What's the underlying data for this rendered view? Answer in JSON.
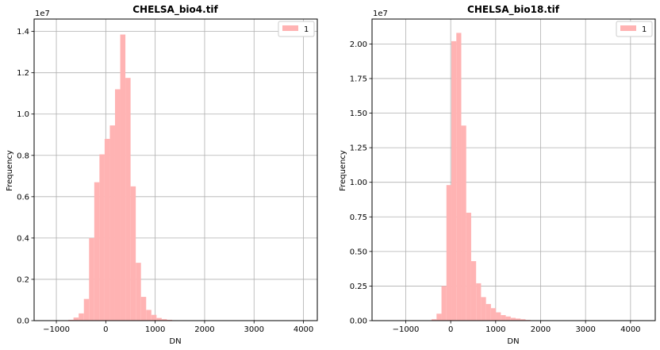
{
  "chart_data": [
    {
      "type": "bar",
      "title": "CHELSA_bio4.tif",
      "xlabel": "DN",
      "ylabel": "Frequency",
      "y_offset_label": "1e7",
      "xlim": [
        -1450,
        4280
      ],
      "ylim": [
        0,
        14.6
      ],
      "xticks": [
        -1000,
        0,
        1000,
        2000,
        3000,
        4000
      ],
      "xtick_labels": [
        "−1000",
        "0",
        "1000",
        "2000",
        "3000",
        "4000"
      ],
      "yticks": [
        0,
        2,
        4,
        6,
        8,
        10,
        12,
        14
      ],
      "ytick_labels": [
        "0.0",
        "0.2",
        "0.4",
        "0.6",
        "0.8",
        "1.0",
        "1.2",
        "1.4"
      ],
      "grid": true,
      "legend": {
        "position": "top-right",
        "entries": [
          "1"
        ]
      },
      "bar_color": "#ffb3b3",
      "bin_width": 105,
      "series": [
        {
          "name": "1",
          "x": [
            -758,
            -653,
            -548,
            -443,
            -338,
            -233,
            -128,
            -23,
            82,
            187,
            292,
            397,
            502,
            607,
            712,
            817,
            922,
            1027,
            1132,
            1237,
            1342,
            1447
          ],
          "values": [
            0.04,
            0.15,
            0.35,
            1.05,
            4.0,
            6.7,
            8.05,
            8.8,
            9.45,
            11.2,
            13.85,
            11.75,
            6.5,
            2.8,
            1.15,
            0.52,
            0.28,
            0.13,
            0.07,
            0.04,
            0.02,
            0.01
          ]
        }
      ]
    },
    {
      "type": "bar",
      "title": "CHELSA_bio18.tif",
      "xlabel": "DN",
      "ylabel": "Frequency",
      "y_offset_label": "1e7",
      "xlim": [
        -1750,
        4550
      ],
      "ylim": [
        0,
        2.18
      ],
      "xticks": [
        -1000,
        0,
        1000,
        2000,
        3000,
        4000
      ],
      "xtick_labels": [
        "−1000",
        "0",
        "1000",
        "2000",
        "3000",
        "4000"
      ],
      "yticks": [
        0,
        0.25,
        0.5,
        0.75,
        1.0,
        1.25,
        1.5,
        1.75,
        2.0
      ],
      "ytick_labels": [
        "0.00",
        "0.25",
        "0.50",
        "0.75",
        "1.00",
        "1.25",
        "1.50",
        "1.75",
        "2.00"
      ],
      "grid": true,
      "legend": {
        "position": "top-right",
        "entries": [
          "1"
        ]
      },
      "bar_color": "#ffb3b3",
      "bin_width": 110,
      "series": [
        {
          "name": "1",
          "x": [
            -425,
            -315,
            -205,
            -95,
            15,
            125,
            235,
            345,
            455,
            565,
            675,
            785,
            895,
            1005,
            1115,
            1225,
            1335,
            1445,
            1555,
            1665
          ],
          "values": [
            0.01,
            0.05,
            0.25,
            0.98,
            2.02,
            2.08,
            1.41,
            0.78,
            0.43,
            0.27,
            0.17,
            0.12,
            0.09,
            0.06,
            0.04,
            0.03,
            0.02,
            0.015,
            0.01,
            0.005
          ]
        }
      ]
    }
  ]
}
